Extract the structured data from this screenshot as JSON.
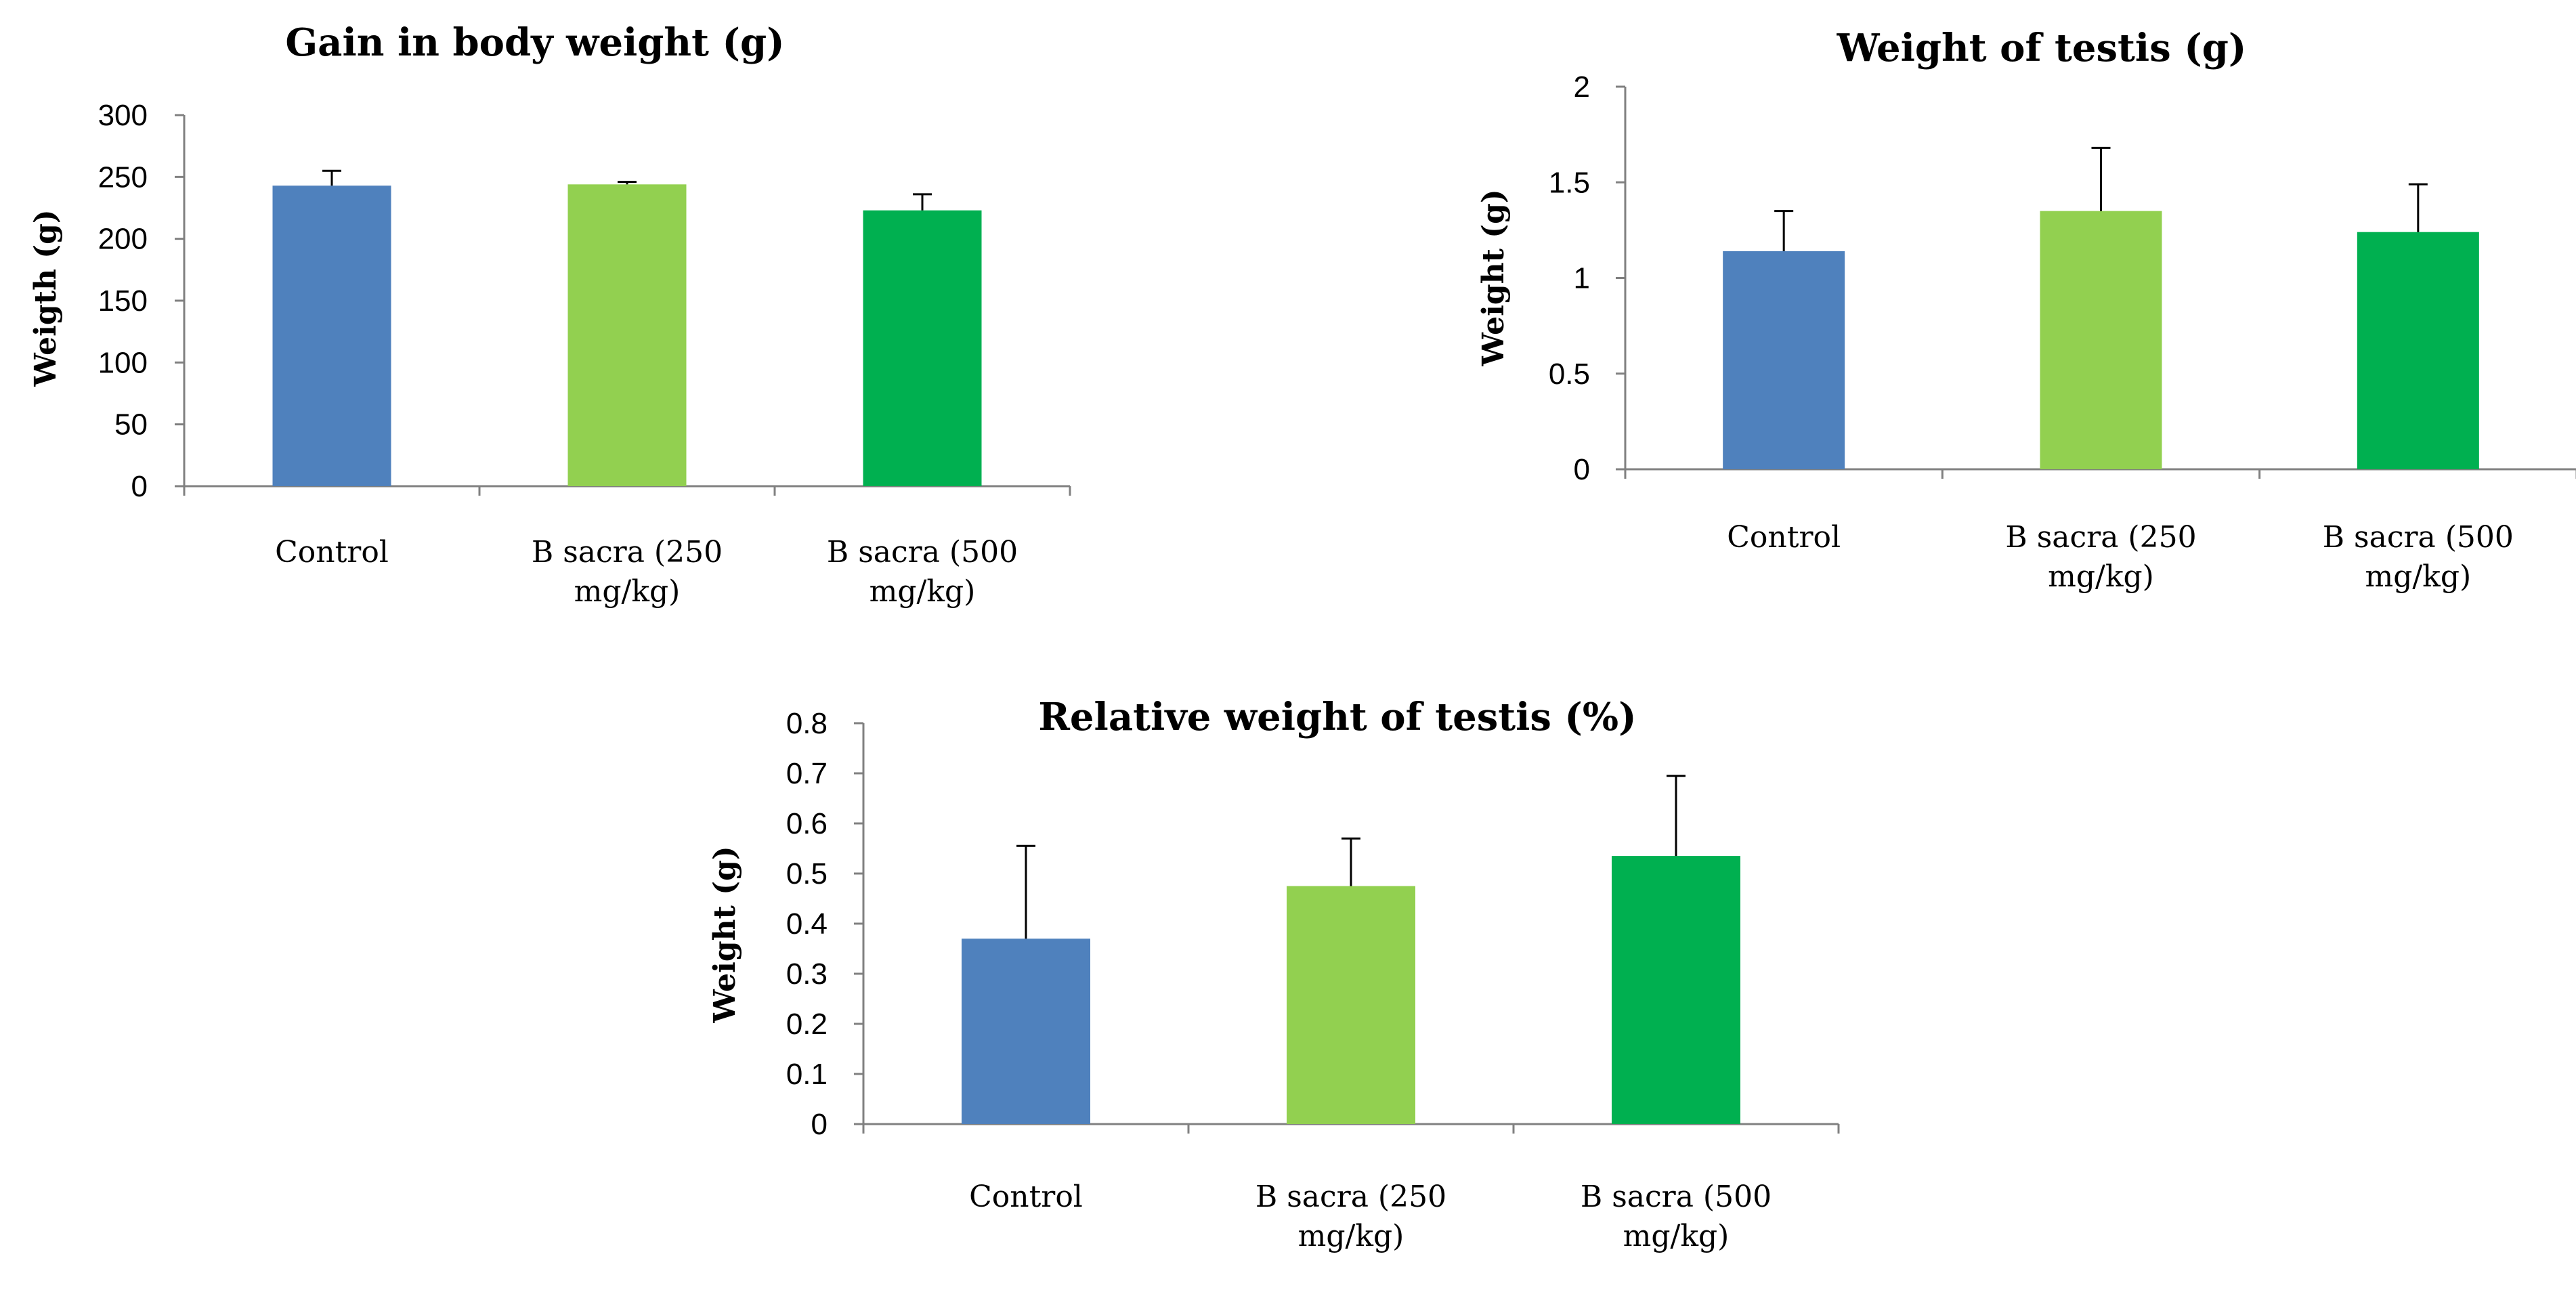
{
  "chart_data": [
    {
      "type": "bar",
      "title": "Gain in body weight (g)",
      "xlabel": "",
      "ylabel": "Weigth (g)",
      "ylim": [
        0,
        300
      ],
      "yticks": [
        "0",
        "50",
        "100",
        "150",
        "200",
        "250",
        "300"
      ],
      "categories": [
        [
          "Control"
        ],
        [
          "B sacra (250",
          "mg/kg)"
        ],
        [
          "B sacra (500",
          "mg/kg)"
        ]
      ],
      "values": [
        243,
        244,
        223
      ],
      "errors": [
        12,
        2,
        13
      ],
      "colors": [
        "#4f81bd",
        "#92d050",
        "#00b050"
      ]
    },
    {
      "type": "bar",
      "title": "Weight of testis  (g)",
      "xlabel": "",
      "ylabel": "Weight (g)",
      "ylim": [
        0,
        2
      ],
      "yticks": [
        "0",
        "0.5",
        "1",
        "1.5",
        "2"
      ],
      "categories": [
        [
          "Control"
        ],
        [
          "B sacra (250",
          "mg/kg)"
        ],
        [
          "B sacra (500",
          "mg/kg)"
        ]
      ],
      "values": [
        1.14,
        1.35,
        1.24
      ],
      "errors": [
        0.21,
        0.33,
        0.25
      ],
      "colors": [
        "#4f81bd",
        "#92d050",
        "#00b050"
      ]
    },
    {
      "type": "bar",
      "title": "Relative weight of testis (%)",
      "xlabel": "",
      "ylabel": "Weight (g)",
      "ylim": [
        0,
        0.8
      ],
      "yticks": [
        "0",
        "0.1",
        "0.2",
        "0.3",
        "0.4",
        "0.5",
        "0.6",
        "0.7",
        "0.8"
      ],
      "categories": [
        [
          "Control"
        ],
        [
          "B sacra (250",
          "mg/kg)"
        ],
        [
          "B sacra (500",
          "mg/kg)"
        ]
      ],
      "values": [
        0.37,
        0.475,
        0.535
      ],
      "errors": [
        0.185,
        0.095,
        0.16
      ],
      "colors": [
        "#4f81bd",
        "#92d050",
        "#00b050"
      ]
    }
  ]
}
